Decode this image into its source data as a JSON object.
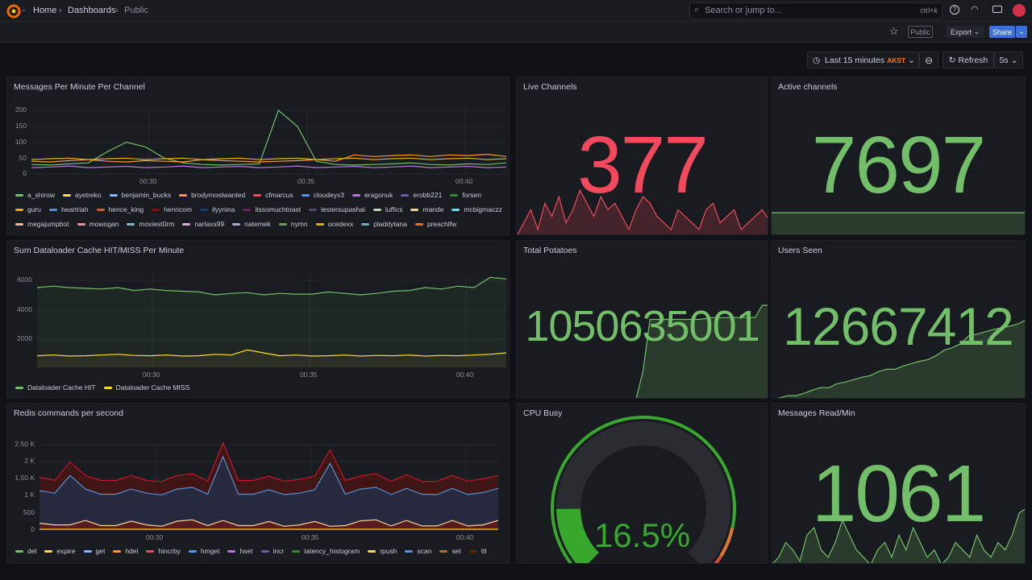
{
  "header": {
    "breadcrumbs": [
      "Home",
      "Dashboards",
      "Public"
    ],
    "search_placeholder": "Search or jump to...",
    "search_shortcut": "ctrl+k"
  },
  "toolbar": {
    "public_badge": "Public",
    "export_label": "Export",
    "share_label": "Share"
  },
  "time": {
    "range_label": "Last 15 minutes",
    "timezone": "AKST",
    "refresh_label": "Refresh",
    "refresh_interval": "5s"
  },
  "colors": {
    "green": "#73bf69",
    "red": "#f2495c",
    "blue": "#3d71d9",
    "orange": "#ff780a"
  },
  "panels": {
    "messages": {
      "title": "Messages Per Minute Per Channel",
      "y_ticks": [
        "200",
        "150",
        "100",
        "50",
        "0"
      ],
      "x_ticks": [
        "00:30",
        "00:35",
        "00:40"
      ],
      "legend": [
        {
          "name": "a_shirow",
          "color": "#73bf69"
        },
        {
          "name": "ayetreko",
          "color": "#fade2a"
        },
        {
          "name": "benjamin_bucks",
          "color": "#8ab8ff"
        },
        {
          "name": "brodymostwanted",
          "color": "#ff9830"
        },
        {
          "name": "cfmarcus",
          "color": "#f2495c"
        },
        {
          "name": "cloudeyx3",
          "color": "#5794f2"
        },
        {
          "name": "eragonuk",
          "color": "#b877d9"
        },
        {
          "name": "erobb221",
          "color": "#705da0"
        },
        {
          "name": "forsen",
          "color": "#37872d"
        },
        {
          "name": "guru",
          "color": "#e0b400"
        },
        {
          "name": "heartriah",
          "color": "#5a8fd0"
        },
        {
          "name": "hence_king",
          "color": "#c4622d"
        },
        {
          "name": "henricom",
          "color": "#890f02"
        },
        {
          "name": "ilyynina",
          "color": "#0a437c"
        },
        {
          "name": "itssomuchtoast",
          "color": "#6d1f62"
        },
        {
          "name": "lestersupashal",
          "color": "#584477"
        },
        {
          "name": "luffics",
          "color": "#b7dbab"
        },
        {
          "name": "mande",
          "color": "#f4d598"
        },
        {
          "name": "mcbigmaczz",
          "color": "#70dbed"
        },
        {
          "name": "megajumpbot",
          "color": "#f9ba8f"
        },
        {
          "name": "mowogan",
          "color": "#f29191"
        },
        {
          "name": "moxiest0rm",
          "color": "#82b5d8"
        },
        {
          "name": "narlaxs99",
          "color": "#e5a8e2"
        },
        {
          "name": "natemek",
          "color": "#aea2e0"
        },
        {
          "name": "nymn",
          "color": "#629e51"
        },
        {
          "name": "ocedexx",
          "color": "#e5ac0e"
        },
        {
          "name": "pladdytana",
          "color": "#64b0c8"
        },
        {
          "name": "preachlfw",
          "color": "#e0752d"
        }
      ],
      "series": [
        [
          30,
          28,
          32,
          35,
          70,
          100,
          85,
          50,
          35,
          30,
          28,
          30,
          32,
          200,
          150,
          40,
          30,
          28,
          30,
          32,
          35,
          30,
          28,
          32,
          30,
          35
        ],
        [
          40,
          38,
          42,
          45,
          40,
          38,
          42,
          40,
          38,
          45,
          42,
          40,
          38,
          40,
          42,
          45,
          40,
          60,
          55,
          58,
          60,
          55,
          60,
          58,
          62,
          55
        ],
        [
          20,
          22,
          25,
          20,
          22,
          24,
          20,
          22,
          25,
          20,
          22,
          24,
          20,
          22,
          25,
          20,
          22,
          24,
          20,
          22,
          25,
          20,
          22,
          24,
          20,
          22
        ],
        [
          45,
          48,
          50,
          45,
          48,
          50,
          45,
          48,
          50,
          45,
          48,
          50,
          45,
          48,
          50,
          45,
          48,
          50,
          45,
          48,
          50,
          45,
          48,
          50,
          45,
          48
        ]
      ]
    },
    "dataloader": {
      "title": "Sum Dataloader Cache HIT/MISS Per Minute",
      "y_ticks": [
        "6000",
        "4000",
        "2000"
      ],
      "x_ticks": [
        "00:30",
        "00:35",
        "00:40"
      ],
      "legend": [
        {
          "name": "Dataloader Cache HIT",
          "color": "#73bf69"
        },
        {
          "name": "Dataloader Cache MISS",
          "color": "#fade2a"
        }
      ],
      "series": [
        [
          5500,
          5600,
          5500,
          5450,
          5400,
          5500,
          5300,
          5400,
          5300,
          5250,
          5200,
          5000,
          5100,
          5150,
          5000,
          5100,
          5050,
          5050,
          5200,
          5100,
          5000,
          5100,
          5250,
          5300,
          5500,
          5400,
          5600,
          5500,
          6200,
          6100
        ],
        [
          800,
          850,
          780,
          800,
          850,
          900,
          820,
          800,
          850,
          780,
          800,
          900,
          850,
          1200,
          1000,
          800,
          850,
          780,
          800,
          850,
          780,
          820,
          800,
          850,
          780,
          820,
          800,
          850,
          900,
          1000
        ]
      ]
    },
    "redis": {
      "title": "Redis commands per second",
      "y_ticks": [
        "2.50 K",
        "2 K",
        "1.50 K",
        "1 K",
        "500",
        "0"
      ],
      "x_ticks": [
        "00:30",
        "00:35",
        "00:40"
      ],
      "legend": [
        {
          "name": "del",
          "color": "#73bf69"
        },
        {
          "name": "expire",
          "color": "#fade2a"
        },
        {
          "name": "get",
          "color": "#8ab8ff"
        },
        {
          "name": "hdel",
          "color": "#ff9830"
        },
        {
          "name": "hincrby",
          "color": "#f2495c"
        },
        {
          "name": "hmget",
          "color": "#5794f2"
        },
        {
          "name": "hset",
          "color": "#b877d9"
        },
        {
          "name": "incr",
          "color": "#705da0"
        },
        {
          "name": "latency_histogram",
          "color": "#37872d"
        },
        {
          "name": "rpush",
          "color": "#fade2a"
        },
        {
          "name": "scan",
          "color": "#5a8fd0"
        },
        {
          "name": "set",
          "color": "#c4622d"
        },
        {
          "name": "ttl",
          "color": "#890f02"
        }
      ],
      "total": [
        1550,
        1450,
        2000,
        1600,
        1450,
        1450,
        1600,
        1450,
        1420,
        1600,
        1650,
        1430,
        2550,
        1450,
        1450,
        1580,
        1430,
        1480,
        1580,
        2350,
        1450,
        1580,
        1650,
        1430,
        1620,
        1420,
        1430,
        1600,
        1430,
        1500,
        1600
      ],
      "scan": [
        1150,
        1080,
        1600,
        1200,
        1050,
        1050,
        1200,
        1080,
        1030,
        1200,
        1250,
        1050,
        2150,
        1050,
        1050,
        1180,
        1040,
        1080,
        1180,
        1950,
        1050,
        1200,
        1250,
        1040,
        1220,
        1050,
        1040,
        1220,
        1040,
        1100,
        1220
      ],
      "small": [
        200,
        150,
        150,
        280,
        130,
        130,
        260,
        150,
        110,
        260,
        300,
        130,
        280,
        130,
        130,
        250,
        110,
        150,
        250,
        110,
        130,
        270,
        300,
        120,
        280,
        120,
        120,
        280,
        120,
        150,
        280
      ]
    },
    "live": {
      "title": "Live Channels",
      "value": "377",
      "spark": [
        320,
        340,
        360,
        330,
        370,
        350,
        380,
        340,
        360,
        390,
        370,
        350,
        380,
        360,
        370,
        350,
        330,
        360,
        380,
        370,
        350,
        340,
        330,
        360,
        350,
        340,
        330,
        360,
        370,
        340,
        350,
        360,
        330,
        340,
        350,
        360,
        345
      ]
    },
    "active": {
      "title": "Active channels",
      "value": "7697",
      "spark": [
        7697,
        7697,
        7697,
        7697
      ]
    },
    "potatoes": {
      "title": "Total Potatoes",
      "value": "1050635001",
      "spark": [
        0,
        0,
        0,
        0,
        0,
        0,
        0,
        0,
        0,
        0,
        0,
        0,
        0,
        0,
        0,
        0,
        0,
        0,
        0.3,
        0.85,
        0.85,
        0.85,
        0.85,
        0.85,
        0.85,
        0.85,
        0.85,
        0.86,
        0.87,
        0.87,
        0.87,
        0.87,
        0.87,
        0.87,
        0.87,
        1,
        1
      ]
    },
    "users": {
      "title": "Users Seen",
      "value": "12667412",
      "spark": [
        0,
        0.02,
        0.05,
        0.05,
        0.08,
        0.12,
        0.15,
        0.15,
        0.2,
        0.22,
        0.25,
        0.28,
        0.3,
        0.35,
        0.38,
        0.38,
        0.42,
        0.45,
        0.48,
        0.5,
        0.55,
        0.62,
        0.65,
        0.7,
        0.8,
        0.82,
        0.85,
        0.88,
        0.9,
        0.92,
        0.95,
        1
      ]
    },
    "cpu": {
      "title": "CPU Busy",
      "value": "16.5%",
      "percent": 16.5
    },
    "msgread": {
      "title": "Messages Read/Min",
      "value": "1061",
      "spark": [
        300,
        400,
        600,
        500,
        350,
        700,
        800,
        500,
        400,
        600,
        900,
        700,
        500,
        400,
        300,
        500,
        600,
        400,
        700,
        500,
        800,
        600,
        400,
        500,
        300,
        400,
        600,
        500,
        400,
        700,
        500,
        400,
        600,
        500,
        700,
        1000,
        1061
      ]
    }
  }
}
